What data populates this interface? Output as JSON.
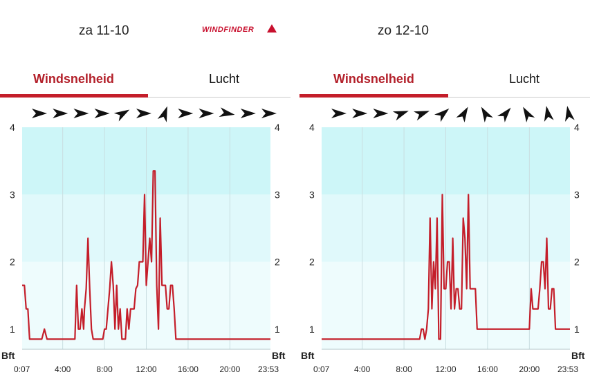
{
  "header": {
    "logo_text": "WINDFINDER"
  },
  "panels": [
    {
      "date": "za 11-10",
      "tabs": [
        {
          "label": "Windsnelheid"
        },
        {
          "label": "Lucht"
        }
      ]
    },
    {
      "date": "zo 12-10",
      "tabs": [
        {
          "label": "Windsnelheid"
        },
        {
          "label": "Lucht"
        }
      ]
    }
  ],
  "chart_data": [
    {
      "type": "line",
      "ylabel": "Bft",
      "ylim": [
        0.7,
        4
      ],
      "yticks": [
        1,
        2,
        3,
        4
      ],
      "xlim": [
        7,
        1433
      ],
      "xticks": [
        {
          "label": "0:07",
          "value": 7
        },
        {
          "label": "4:00",
          "value": 240
        },
        {
          "label": "8:00",
          "value": 480
        },
        {
          "label": "12:00",
          "value": 720
        },
        {
          "label": "16:00",
          "value": 960
        },
        {
          "label": "20:00",
          "value": 1200
        },
        {
          "label": "23:53",
          "value": 1433
        }
      ],
      "wind_directions_deg": [
        90,
        90,
        90,
        90,
        60,
        90,
        20,
        90,
        90,
        100,
        90,
        90
      ],
      "series": [
        {
          "color": "#c41e2a",
          "x": [
            7,
            20,
            30,
            40,
            50,
            60,
            75,
            90,
            100,
            110,
            120,
            135,
            150,
            160,
            175,
            190,
            210,
            230,
            245,
            260,
            272,
            282,
            290,
            300,
            310,
            320,
            330,
            340,
            350,
            360,
            365,
            375,
            385,
            395,
            405,
            415,
            425,
            432,
            440,
            450,
            460,
            470,
            480,
            490,
            500,
            510,
            520,
            530,
            540,
            550,
            560,
            570,
            580,
            590,
            600,
            610,
            620,
            630,
            640,
            650,
            660,
            670,
            680,
            690,
            700,
            710,
            720,
            730,
            740,
            750,
            760,
            770,
            780,
            790,
            800,
            810,
            820,
            830,
            840,
            850,
            860,
            870,
            880,
            890,
            900,
            910,
            920,
            930,
            940,
            950,
            960,
            970,
            980,
            990,
            1000,
            1010,
            1020,
            1030,
            1040,
            1050,
            1060,
            1070,
            1080,
            1090,
            1100,
            1120,
            1200,
            1300,
            1433
          ],
          "y": [
            1.65,
            1.65,
            1.3,
            1.3,
            0.85,
            0.85,
            0.85,
            0.85,
            0.85,
            0.85,
            0.85,
            1.0,
            0.85,
            0.85,
            0.85,
            0.85,
            0.85,
            0.85,
            0.85,
            0.85,
            0.85,
            0.85,
            0.85,
            0.85,
            0.85,
            1.65,
            1.0,
            1.0,
            1.3,
            1.0,
            1.3,
            1.6,
            2.35,
            1.6,
            1.0,
            0.85,
            0.85,
            0.85,
            0.85,
            0.85,
            0.85,
            0.85,
            1.0,
            1.0,
            1.3,
            1.6,
            2.0,
            1.65,
            1.0,
            1.65,
            1.0,
            1.3,
            0.85,
            0.85,
            0.85,
            1.3,
            1.0,
            1.3,
            1.3,
            1.3,
            1.6,
            1.65,
            2.0,
            2.0,
            2.0,
            3.0,
            1.65,
            2.0,
            2.35,
            2.0,
            3.35,
            3.35,
            1.65,
            1.0,
            2.65,
            1.65,
            1.65,
            1.65,
            1.3,
            1.3,
            1.65,
            1.65,
            1.3,
            0.85,
            0.85,
            0.85,
            0.85,
            0.85,
            0.85,
            0.85,
            0.85,
            0.85,
            0.85,
            0.85,
            0.85,
            0.85,
            0.85,
            0.85,
            0.85,
            0.85,
            0.85,
            0.85,
            0.85,
            0.85,
            0.85,
            0.85,
            0.85,
            0.85,
            0.85
          ]
        }
      ]
    },
    {
      "type": "line",
      "ylabel": "Bft",
      "ylim": [
        0.7,
        4
      ],
      "yticks": [
        1,
        2,
        3,
        4
      ],
      "xlim": [
        7,
        1433
      ],
      "xticks": [
        {
          "label": "0:07",
          "value": 7
        },
        {
          "label": "4:00",
          "value": 240
        },
        {
          "label": "8:00",
          "value": 480
        },
        {
          "label": "12:00",
          "value": 720
        },
        {
          "label": "16:00",
          "value": 960
        },
        {
          "label": "20:00",
          "value": 1200
        },
        {
          "label": "23:53",
          "value": 1433
        }
      ],
      "wind_directions_deg": [
        90,
        90,
        90,
        70,
        70,
        50,
        30,
        330,
        40,
        330,
        350,
        350
      ],
      "series": [
        {
          "color": "#c41e2a",
          "x": [
            7,
            100,
            200,
            300,
            400,
            500,
            565,
            570,
            580,
            590,
            600,
            610,
            620,
            630,
            640,
            650,
            660,
            670,
            680,
            690,
            700,
            710,
            720,
            730,
            740,
            750,
            760,
            770,
            780,
            790,
            800,
            810,
            820,
            830,
            840,
            850,
            860,
            870,
            880,
            890,
            900,
            910,
            920,
            930,
            940,
            950,
            960,
            970,
            980,
            990,
            1000,
            1010,
            1020,
            1030,
            1040,
            1050,
            1060,
            1070,
            1080,
            1090,
            1100,
            1110,
            1120,
            1130,
            1140,
            1150,
            1160,
            1170,
            1180,
            1190,
            1200,
            1210,
            1220,
            1230,
            1240,
            1250,
            1260,
            1270,
            1280,
            1290,
            1300,
            1310,
            1320,
            1330,
            1340,
            1350,
            1360,
            1370,
            1380,
            1390,
            1400,
            1410,
            1420,
            1433
          ],
          "y": [
            0.85,
            0.85,
            0.85,
            0.85,
            0.85,
            0.85,
            0.85,
            0.85,
            1.0,
            1.0,
            0.85,
            1.0,
            1.3,
            2.65,
            1.3,
            2.0,
            1.6,
            2.65,
            0.85,
            0.85,
            3.0,
            1.6,
            1.6,
            2.0,
            2.0,
            1.3,
            2.35,
            1.3,
            1.6,
            1.6,
            1.3,
            1.3,
            2.65,
            2.35,
            1.6,
            3.0,
            1.6,
            1.6,
            1.6,
            1.6,
            1.0,
            1.0,
            1.0,
            1.0,
            1.0,
            1.0,
            1.0,
            1.0,
            1.0,
            1.0,
            1.0,
            1.0,
            1.0,
            1.0,
            1.0,
            1.0,
            1.0,
            1.0,
            1.0,
            1.0,
            1.0,
            1.0,
            1.0,
            1.0,
            1.0,
            1.0,
            1.0,
            1.0,
            1.0,
            1.0,
            1.0,
            1.6,
            1.3,
            1.3,
            1.3,
            1.3,
            1.6,
            2.0,
            2.0,
            1.6,
            2.35,
            1.3,
            1.3,
            1.6,
            1.6,
            1.0,
            1.0,
            1.0,
            1.0,
            1.0,
            1.0,
            1.0,
            1.0,
            1.0
          ]
        }
      ]
    }
  ]
}
